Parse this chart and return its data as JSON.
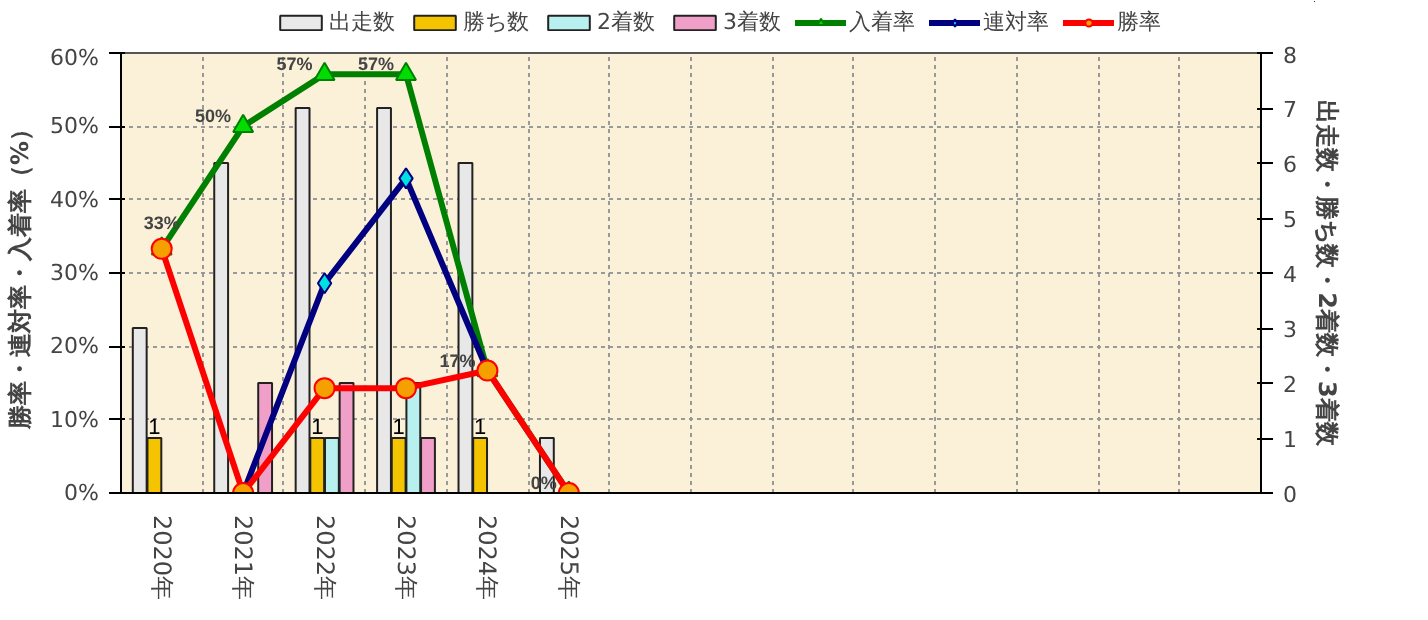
{
  "chart_data": {
    "type": "bar",
    "ylabel": "勝率・連対率・入着率（%）",
    "y2label": "出走数・勝ち数・2着数・3着数",
    "categories": [
      "2020年",
      "2021年",
      "2022年",
      "2023年",
      "2024年",
      "2025年",
      null,
      null,
      null,
      null,
      null,
      null,
      null,
      null
    ],
    "series": [
      {
        "name": "出走数",
        "axis": "y2",
        "color": "#e8e8e8",
        "values": [
          3,
          6,
          7,
          7,
          6,
          1,
          null,
          null,
          null,
          null,
          null,
          null,
          null,
          null
        ]
      },
      {
        "name": "勝ち数",
        "axis": "y2",
        "color": "#f5c400",
        "values": [
          1,
          0,
          1,
          1,
          1,
          0,
          null,
          null,
          null,
          null,
          null,
          null,
          null,
          null
        ],
        "value_labels": [
          "1",
          null,
          "1",
          "1",
          "1",
          null,
          null,
          null,
          null,
          null,
          null,
          null,
          null,
          null
        ]
      },
      {
        "name": "2着数",
        "axis": "y2",
        "color": "#b8f0f0",
        "values": [
          0,
          0,
          1,
          2,
          0,
          0,
          null,
          null,
          null,
          null,
          null,
          null,
          null,
          null
        ]
      },
      {
        "name": "3着数",
        "axis": "y2",
        "color": "#f0a0c8",
        "values": [
          0,
          2,
          2,
          1,
          0,
          0,
          null,
          null,
          null,
          null,
          null,
          null,
          null,
          null
        ]
      },
      {
        "name": "入着率",
        "type": "line",
        "marker": "triangle",
        "color": "#008000",
        "values": [
          33.3,
          50,
          57.1,
          57.1,
          16.7,
          0,
          null,
          null,
          null,
          null,
          null,
          null,
          null,
          null
        ],
        "value_labels": [
          "33%",
          "50%",
          "57%",
          "57%",
          "17%",
          "0%",
          null,
          null,
          null,
          null,
          null,
          null,
          null,
          null
        ]
      },
      {
        "name": "連対率",
        "type": "line",
        "marker": "diamond",
        "color": "#000080",
        "values": [
          null,
          0,
          28.6,
          42.9,
          16.7,
          null,
          null,
          null,
          null,
          null,
          null,
          null,
          null,
          null
        ]
      },
      {
        "name": "勝率",
        "type": "line",
        "marker": "circle",
        "color": "#ff0000",
        "values": [
          33.3,
          0,
          14.3,
          14.3,
          16.7,
          0,
          null,
          null,
          null,
          null,
          null,
          null,
          null,
          null
        ]
      }
    ],
    "ylim": [
      0,
      60
    ],
    "yticks": [
      {
        "value": 0,
        "label": "0%"
      },
      {
        "value": 10,
        "label": "10%"
      },
      {
        "value": 20,
        "label": "20%"
      },
      {
        "value": 30,
        "label": "30%"
      },
      {
        "value": 40,
        "label": "40%"
      },
      {
        "value": 50,
        "label": "50%"
      },
      {
        "value": 60,
        "label": "60%"
      }
    ],
    "y2lim": [
      0,
      8
    ],
    "y2ticks": [
      0,
      1,
      2,
      3,
      4,
      5,
      6,
      7,
      8
    ],
    "grid": true,
    "legend": "top"
  }
}
